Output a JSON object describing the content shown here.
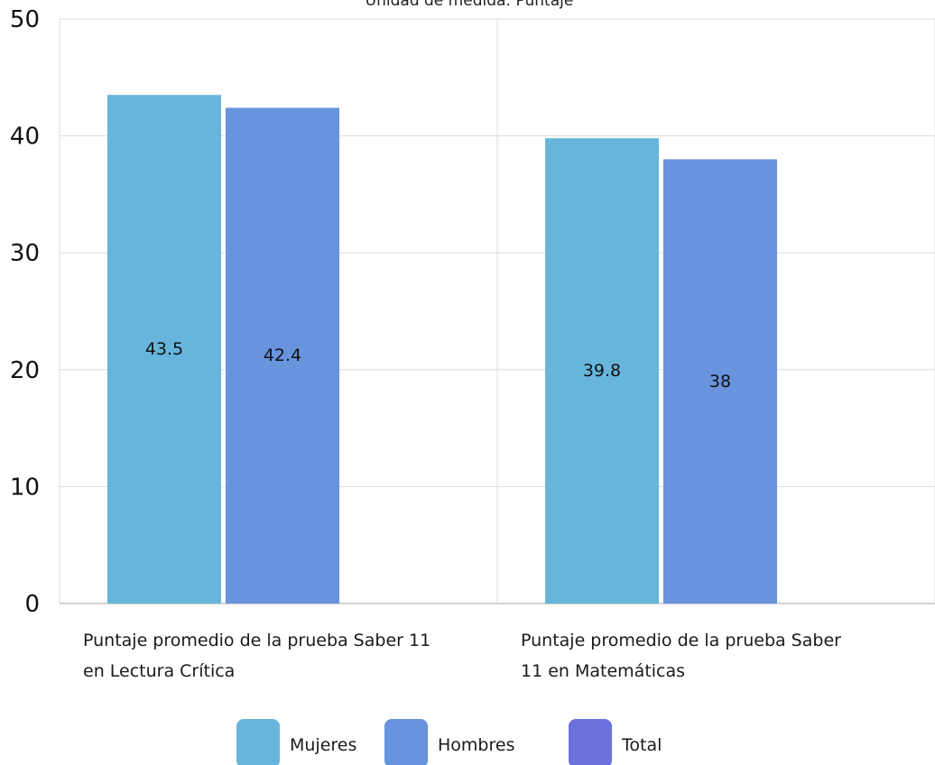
{
  "chart_data": {
    "type": "bar",
    "subtitle": "Unidad de medida: Puntaje",
    "categories": [
      [
        "Puntaje promedio de la prueba Saber 11",
        "en Lectura Crítica"
      ],
      [
        "Puntaje promedio de la prueba Saber",
        "11 en Matemáticas"
      ]
    ],
    "series": [
      {
        "name": "Mujeres",
        "values": [
          43.5,
          39.8
        ],
        "labels": [
          "43.5",
          "39.8"
        ],
        "color": "#67b5db"
      },
      {
        "name": "Hombres",
        "values": [
          42.4,
          38
        ],
        "labels": [
          "42.4",
          "38"
        ],
        "color": "#6893dd"
      },
      {
        "name": "Total",
        "values": [
          null,
          null
        ],
        "labels": [],
        "color": "#6c70dd"
      }
    ],
    "ylim": [
      0,
      50
    ],
    "yticks": [
      0,
      10,
      20,
      30,
      40,
      50
    ],
    "grid": true,
    "legend": "bottom"
  }
}
